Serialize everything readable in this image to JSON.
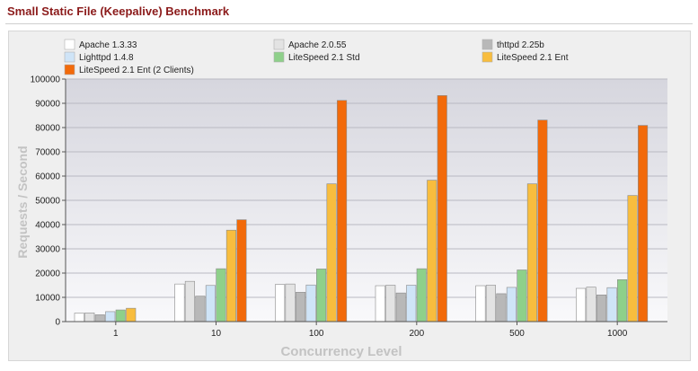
{
  "page": {
    "title": "Small Static File (Keepalive) Benchmark"
  },
  "chart_data": {
    "type": "bar",
    "title": "Small Static File (Keepalive) Benchmark",
    "xlabel": "Concurrency Level",
    "ylabel": "Requests / Second",
    "categories": [
      "1",
      "10",
      "100",
      "200",
      "500",
      "1000"
    ],
    "ylim": [
      0,
      100000
    ],
    "yticks": [
      0,
      10000,
      20000,
      30000,
      40000,
      50000,
      60000,
      70000,
      80000,
      90000,
      100000
    ],
    "grid": true,
    "legend_position": "top",
    "series": [
      {
        "name": "Apache 1.3.33",
        "color": "#ffffff",
        "values": [
          3500,
          15500,
          15300,
          14800,
          14800,
          13700
        ]
      },
      {
        "name": "Apache 2.0.55",
        "color": "#e3e3e3",
        "values": [
          3600,
          16600,
          15500,
          15000,
          15000,
          14200
        ]
      },
      {
        "name": "thttpd 2.25b",
        "color": "#b8b8b8",
        "values": [
          2800,
          10500,
          12100,
          11800,
          11500,
          11000
        ]
      },
      {
        "name": "Lighttpd 1.4.8",
        "color": "#cfe4f7",
        "values": [
          4100,
          14900,
          15100,
          15000,
          14100,
          14000
        ]
      },
      {
        "name": "LiteSpeed 2.1 Std",
        "color": "#8ed08a",
        "values": [
          4800,
          21800,
          21700,
          21800,
          21300,
          17300
        ]
      },
      {
        "name": "LiteSpeed 2.1 Ent",
        "color": "#f8bd3e",
        "values": [
          5500,
          37700,
          56800,
          58300,
          56800,
          52000
        ]
      },
      {
        "name": "LiteSpeed 2.1 Ent (2 Clients)",
        "color": "#f26a0a",
        "values": [
          null,
          42000,
          91200,
          93200,
          83100,
          80900
        ]
      }
    ]
  }
}
